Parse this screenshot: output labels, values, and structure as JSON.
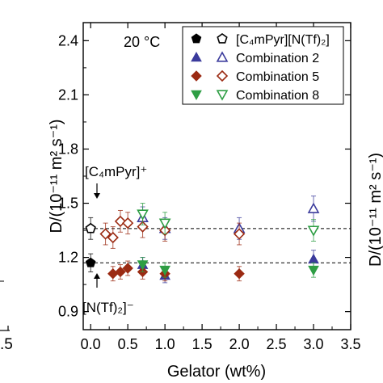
{
  "chart_data": {
    "type": "scatter",
    "temperature_label": "20 °C",
    "xlabel": "Gelator (wt%)",
    "ylabel": "D/(10⁻¹¹ m² s⁻¹)",
    "xlim": [
      -0.1,
      3.5
    ],
    "ylim": [
      0.8,
      2.5
    ],
    "x_ticks": [
      "0.0",
      "0.5",
      "1.0",
      "1.5",
      "2.0",
      "2.5",
      "3.0",
      "3.5"
    ],
    "y_ticks": [
      "0.9",
      "1.2",
      "1.5",
      "1.8",
      "2.1",
      "2.4"
    ],
    "reference_lines": [
      1.36,
      1.17
    ],
    "annotations": {
      "cation": "[C₄mPyr]⁺",
      "anion": "[N(Tf)₂]⁻"
    },
    "left_panel_edge_label": ".5",
    "right_panel_ylabel": "D/(10⁻¹¹ m² s⁻¹)",
    "legend": {
      "placement": "top-right",
      "entries": [
        {
          "name": "[C₄mPyr][N(Tf)₂]",
          "filled_marker": "pentagon",
          "open_marker": "pentagon",
          "color": "#000000"
        },
        {
          "name": "Combination 2",
          "filled_marker": "triangle-up",
          "open_marker": "triangle-up",
          "color": "#3b3b9c"
        },
        {
          "name": "Combination 5",
          "filled_marker": "diamond",
          "open_marker": "diamond",
          "color": "#9b2a12"
        },
        {
          "name": "Combination 8",
          "filled_marker": "triangle-down",
          "open_marker": "triangle-down",
          "color": "#2e9e44"
        }
      ]
    },
    "series": [
      {
        "name": "[C₄mPyr][N(Tf)₂]",
        "ion": "cation",
        "marker": "pentagon",
        "filled": false,
        "color": "#000000",
        "x": [
          0.0
        ],
        "y": [
          1.36
        ],
        "err": [
          0.06
        ]
      },
      {
        "name": "[C₄mPyr][N(Tf)₂]",
        "ion": "anion",
        "marker": "pentagon",
        "filled": true,
        "color": "#000000",
        "x": [
          0.0
        ],
        "y": [
          1.17
        ],
        "err": [
          0.05
        ]
      },
      {
        "name": "Combination 2",
        "ion": "cation",
        "marker": "triangle-up",
        "filled": false,
        "color": "#3b3b9c",
        "x": [
          0.7,
          1.0,
          2.0,
          3.0
        ],
        "y": [
          1.42,
          1.36,
          1.36,
          1.47
        ],
        "err": [
          0.06,
          0.06,
          0.06,
          0.07
        ]
      },
      {
        "name": "Combination 2",
        "ion": "anion",
        "marker": "triangle-up",
        "filled": true,
        "color": "#3b3b9c",
        "x": [
          0.7,
          1.0,
          3.0
        ],
        "y": [
          1.16,
          1.1,
          1.19
        ],
        "err": [
          0.04,
          0.04,
          0.05
        ]
      },
      {
        "name": "Combination 5",
        "ion": "cation",
        "marker": "diamond",
        "filled": false,
        "color": "#9b2a12",
        "x": [
          0.2,
          0.3,
          0.4,
          0.5,
          0.7,
          1.0,
          2.0
        ],
        "y": [
          1.33,
          1.31,
          1.4,
          1.39,
          1.37,
          1.35,
          1.33
        ],
        "err": [
          0.06,
          0.06,
          0.06,
          0.06,
          0.06,
          0.06,
          0.06
        ]
      },
      {
        "name": "Combination 5",
        "ion": "anion",
        "marker": "diamond",
        "filled": true,
        "color": "#9b2a12",
        "x": [
          0.3,
          0.4,
          0.5,
          0.7,
          1.0,
          2.0
        ],
        "y": [
          1.11,
          1.12,
          1.14,
          1.12,
          1.11,
          1.11
        ],
        "err": [
          0.04,
          0.04,
          0.04,
          0.04,
          0.04,
          0.04
        ]
      },
      {
        "name": "Combination 8",
        "ion": "cation",
        "marker": "triangle-down",
        "filled": false,
        "color": "#2e9e44",
        "x": [
          0.7,
          1.0,
          3.0
        ],
        "y": [
          1.44,
          1.39,
          1.35
        ],
        "err": [
          0.06,
          0.06,
          0.06
        ]
      },
      {
        "name": "Combination 8",
        "ion": "anion",
        "marker": "triangle-down",
        "filled": true,
        "color": "#2e9e44",
        "x": [
          0.7,
          1.0,
          3.0
        ],
        "y": [
          1.16,
          1.13,
          1.13
        ],
        "err": [
          0.04,
          0.04,
          0.04
        ]
      }
    ]
  }
}
